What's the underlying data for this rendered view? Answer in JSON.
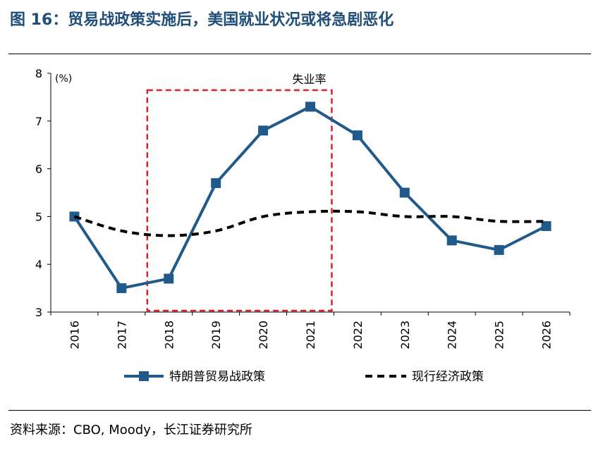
{
  "header": {
    "title": "图 16：贸易战政策实施后，美国就业状况或将急剧恶化"
  },
  "footer": {
    "source": "资料来源：CBO, Moody，长江证券研究所"
  },
  "chart_data": {
    "type": "line",
    "title": "",
    "ylabel": "(%)",
    "xlabel": "",
    "ylim": [
      3,
      8
    ],
    "yticks": [
      3,
      4,
      5,
      6,
      7,
      8
    ],
    "categories": [
      "2016",
      "2017",
      "2018",
      "2019",
      "2020",
      "2021",
      "2022",
      "2023",
      "2024",
      "2025",
      "2026"
    ],
    "series": [
      {
        "name": "特朗普贸易战政策",
        "style": "solid-square",
        "color": "#1f5a8a",
        "values": [
          5.0,
          3.5,
          3.7,
          5.7,
          6.8,
          7.3,
          6.7,
          5.5,
          4.5,
          4.3,
          4.8
        ]
      },
      {
        "name": "现行经济政策",
        "style": "dashed",
        "color": "#000000",
        "values": [
          5.0,
          4.7,
          4.6,
          4.7,
          5.0,
          5.1,
          5.1,
          5.0,
          5.0,
          4.9,
          4.9
        ]
      }
    ],
    "annotation": {
      "text": "失业率",
      "range": [
        "2018",
        "2021"
      ],
      "color": "#e02020"
    },
    "legend": "bottom"
  }
}
